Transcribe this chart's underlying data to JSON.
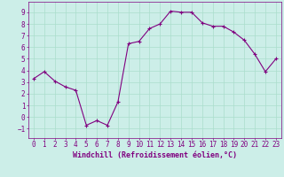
{
  "x": [
    0,
    1,
    2,
    3,
    4,
    5,
    6,
    7,
    8,
    9,
    10,
    11,
    12,
    13,
    14,
    15,
    16,
    17,
    18,
    19,
    20,
    21,
    22,
    23
  ],
  "y": [
    3.3,
    3.9,
    3.1,
    2.6,
    2.3,
    -0.7,
    -0.3,
    -0.7,
    1.3,
    6.3,
    6.5,
    7.6,
    8.0,
    9.1,
    9.0,
    9.0,
    8.1,
    7.8,
    7.8,
    7.3,
    6.6,
    5.4,
    3.9,
    5.0
  ],
  "line_color": "#800080",
  "marker": "+",
  "markersize": 3.5,
  "linewidth": 0.8,
  "bg_color": "#cceee8",
  "grid_color": "#aaddcc",
  "xlabel": "Windchill (Refroidissement éolien,°C)",
  "tick_fontsize": 5.5,
  "xlim": [
    -0.5,
    23.5
  ],
  "ylim": [
    -1.8,
    9.9
  ],
  "yticks": [
    -1,
    0,
    1,
    2,
    3,
    4,
    5,
    6,
    7,
    8,
    9
  ],
  "xticks": [
    0,
    1,
    2,
    3,
    4,
    5,
    6,
    7,
    8,
    9,
    10,
    11,
    12,
    13,
    14,
    15,
    16,
    17,
    18,
    19,
    20,
    21,
    22,
    23
  ]
}
